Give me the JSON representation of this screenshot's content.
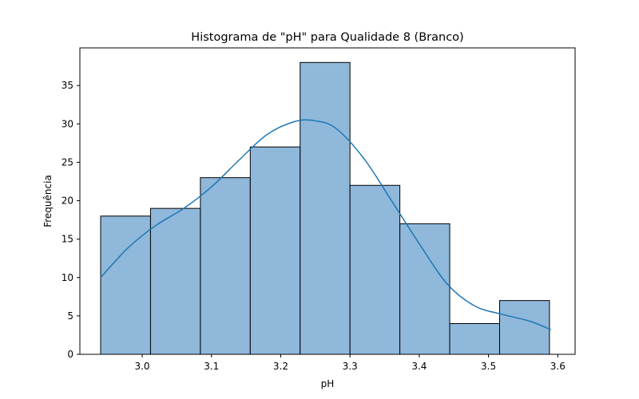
{
  "chart_data": {
    "type": "bar",
    "title": "Histograma de \"pH\" para Qualidade 8 (Branco)",
    "xlabel": "pH",
    "ylabel": "Frequência",
    "xlim": [
      2.91,
      3.625
    ],
    "ylim": [
      0,
      39.9
    ],
    "xticks": [
      3.0,
      3.1,
      3.2,
      3.3,
      3.4,
      3.5,
      3.6
    ],
    "xtick_labels": [
      "3.0",
      "3.1",
      "3.2",
      "3.3",
      "3.4",
      "3.5",
      "3.6"
    ],
    "yticks": [
      0,
      5,
      10,
      15,
      20,
      25,
      30,
      35
    ],
    "ytick_labels": [
      "0",
      "5",
      "10",
      "15",
      "20",
      "25",
      "30",
      "35"
    ],
    "bins": [
      {
        "x0": 2.94,
        "x1": 3.012,
        "count": 18
      },
      {
        "x0": 3.012,
        "x1": 3.084,
        "count": 19
      },
      {
        "x0": 3.084,
        "x1": 3.156,
        "count": 23
      },
      {
        "x0": 3.156,
        "x1": 3.228,
        "count": 27
      },
      {
        "x0": 3.228,
        "x1": 3.3,
        "count": 38
      },
      {
        "x0": 3.3,
        "x1": 3.372,
        "count": 22
      },
      {
        "x0": 3.372,
        "x1": 3.444,
        "count": 17
      },
      {
        "x0": 3.444,
        "x1": 3.516,
        "count": 4
      },
      {
        "x0": 3.516,
        "x1": 3.588,
        "count": 7
      }
    ],
    "kde": {
      "x": [
        2.94,
        2.98,
        3.02,
        3.06,
        3.1,
        3.14,
        3.18,
        3.22,
        3.25,
        3.28,
        3.32,
        3.36,
        3.4,
        3.44,
        3.48,
        3.52,
        3.56,
        3.59
      ],
      "y": [
        10.0,
        13.9,
        16.8,
        19.0,
        21.8,
        25.3,
        28.6,
        30.3,
        30.4,
        29.4,
        25.5,
        20.0,
        14.4,
        9.2,
        6.3,
        5.2,
        4.3,
        3.2
      ]
    },
    "bar_color": "#8fb8db",
    "bar_edge_color": "#000000",
    "line_color": "#1f77b4",
    "grid": false,
    "legend": "none"
  }
}
